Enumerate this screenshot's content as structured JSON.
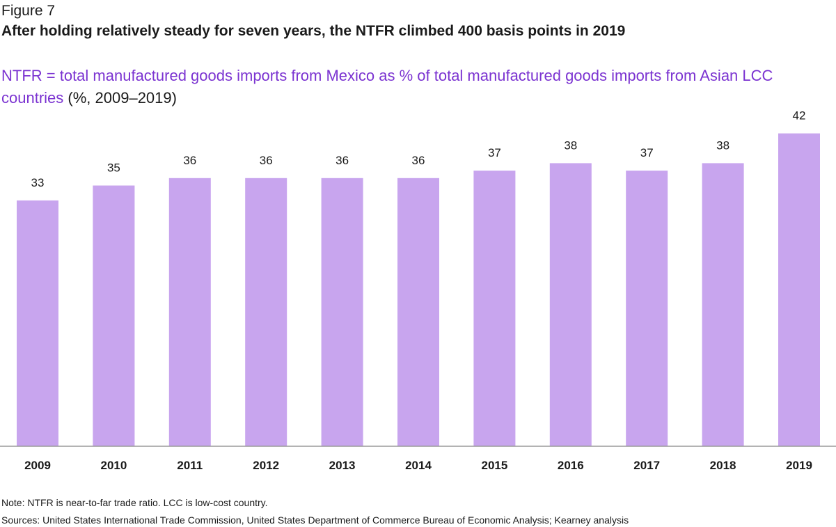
{
  "figure_label": "Figure 7",
  "title": "After holding relatively steady for seven years, the NTFR climbed 400 basis points in 2019",
  "subtitle_main": "NTFR = total manufactured goods imports from Mexico as % of total manufactured goods imports from Asian LCC countries",
  "subtitle_unit": "(%, 2009–2019)",
  "note": "Note: NTFR is near-to-far trade ratio. LCC is low-cost country.",
  "sources": "Sources: United States International Trade Commission, United States Department of Commerce Bureau of Economic Analysis; Kearney analysis",
  "colors": {
    "bar": "#c8a5ee",
    "accent_text": "#7b33d1"
  },
  "chart_data": {
    "type": "bar",
    "categories": [
      "2009",
      "2010",
      "2011",
      "2012",
      "2013",
      "2014",
      "2015",
      "2016",
      "2017",
      "2018",
      "2019"
    ],
    "values": [
      33,
      35,
      36,
      36,
      36,
      36,
      37,
      38,
      37,
      38,
      42
    ],
    "labels": [
      "33",
      "35",
      "36",
      "36",
      "36",
      "36",
      "37",
      "38",
      "37",
      "38",
      "42"
    ],
    "grid": false,
    "legend": "none"
  }
}
